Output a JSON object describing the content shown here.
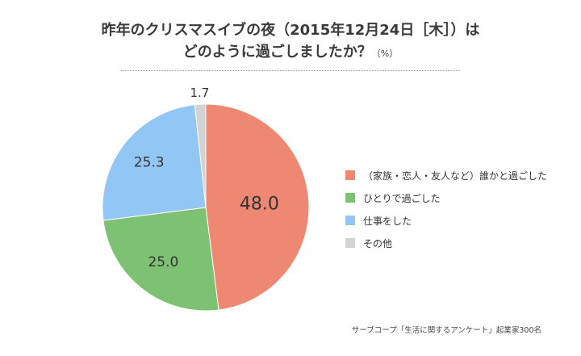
{
  "title": {
    "line1": "昨年のクリスマスイブの夜（2015年12月24日［木］）は",
    "line2": "どのように過ごしましたか？",
    "unit": "（%）"
  },
  "source": "サーブコープ「生活に関するアンケート」起業家300名",
  "chart_data": {
    "type": "pie",
    "categories": [
      "（家族・恋人・友人など）誰かと過ごした",
      "ひとりで過ごした",
      "仕事をした",
      "その他"
    ],
    "values": [
      48.0,
      25.0,
      25.3,
      1.7
    ],
    "labels": [
      "48.0",
      "25.0",
      "25.3",
      "1.7"
    ],
    "colors": [
      "#ee8873",
      "#7dc172",
      "#92c6f4",
      "#d3d3d3"
    ],
    "start": "top",
    "direction": "clockwise",
    "legend_position": "right"
  }
}
